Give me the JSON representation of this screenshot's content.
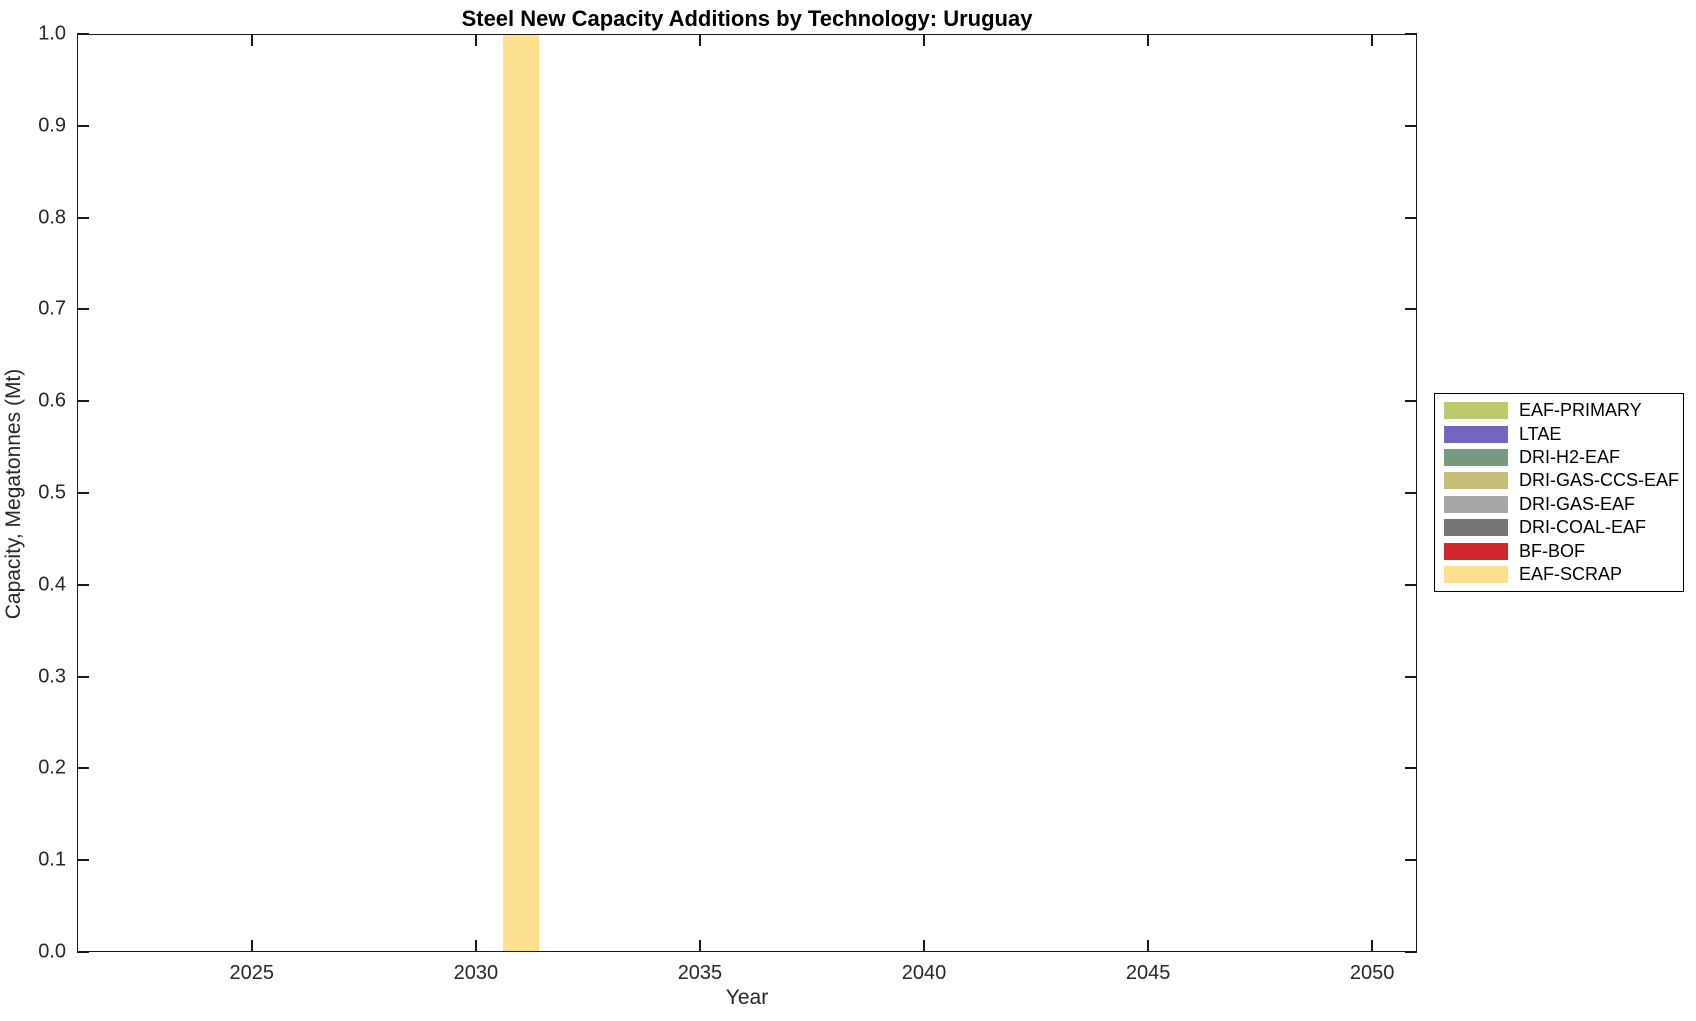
{
  "chart_data": {
    "type": "bar",
    "title": "Steel New Capacity Additions by Technology: Uruguay",
    "xlabel": "Year",
    "ylabel": "Capacity, Megatonnes (Mt)",
    "xlim": [
      2021.1,
      2051
    ],
    "ylim": [
      0,
      1
    ],
    "x_ticks": [
      2025,
      2030,
      2035,
      2040,
      2045,
      2050
    ],
    "y_ticks": [
      0,
      0.1,
      0.2,
      0.3,
      0.4,
      0.5,
      0.6,
      0.7,
      0.8,
      0.9,
      1.0
    ],
    "y_tick_labels": [
      "0.0",
      "0.1",
      "0.2",
      "0.3",
      "0.4",
      "0.5",
      "0.6",
      "0.7",
      "0.8",
      "0.9",
      "1.0"
    ],
    "bar_width_years": 0.8,
    "grid": false,
    "legend_position": "right-outside",
    "series": [
      {
        "name": "EAF-PRIMARY",
        "color": "#BDC96B",
        "x": [],
        "y": []
      },
      {
        "name": "LTAE",
        "color": "#7266C0",
        "x": [],
        "y": []
      },
      {
        "name": "DRI-H2-EAF",
        "color": "#779B81",
        "x": [],
        "y": []
      },
      {
        "name": "DRI-GAS-CCS-EAF",
        "color": "#C7BD7A",
        "x": [],
        "y": []
      },
      {
        "name": "DRI-GAS-EAF",
        "color": "#A7A7A7",
        "x": [],
        "y": []
      },
      {
        "name": "DRI-COAL-EAF",
        "color": "#757575",
        "x": [],
        "y": []
      },
      {
        "name": "BF-BOF",
        "color": "#D1262B",
        "x": [],
        "y": []
      },
      {
        "name": "EAF-SCRAP",
        "color": "#FCE090",
        "x": [
          2031
        ],
        "y": [
          1.0
        ]
      }
    ],
    "colors": {
      "axis": "#1a1a1a",
      "tick_label": "#262626",
      "title": "#000000",
      "background": "#ffffff"
    }
  }
}
